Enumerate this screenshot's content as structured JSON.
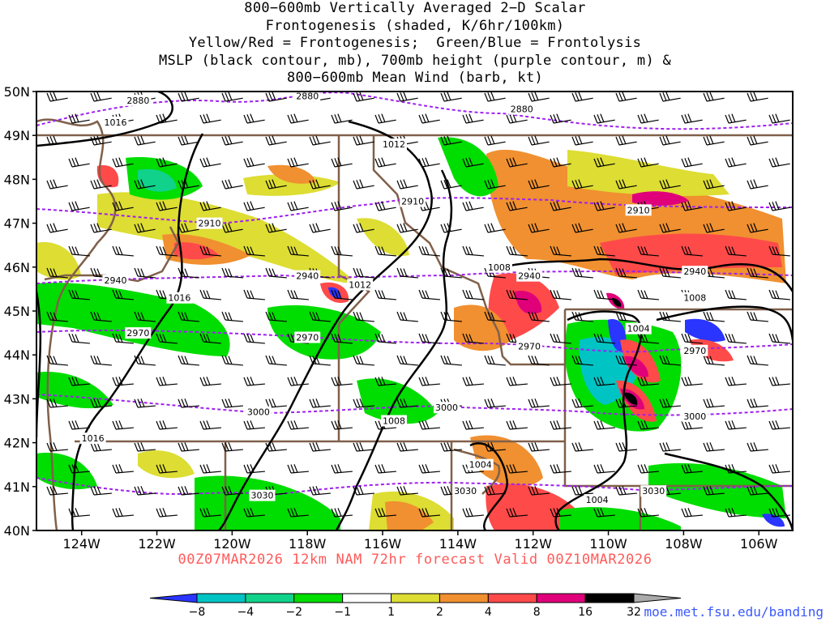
{
  "title": {
    "lines": [
      "800−600mb Vertically Averaged 2−D Scalar",
      "Frontogenesis (shaded, K/6hr/100km)",
      "Yellow/Red = Frontogenesis;  Green/Blue = Frontolysis",
      "MSLP (black contour, mb), 700mb height (purple contour, m) &",
      "800−600mb Mean Wind (barb, kt)"
    ]
  },
  "map": {
    "lon_range": [
      -125.2,
      -105.1
    ],
    "lat_range": [
      40,
      50
    ],
    "lat_ticks": [
      "50N",
      "49N",
      "48N",
      "47N",
      "46N",
      "45N",
      "44N",
      "43N",
      "42N",
      "41N",
      "40N"
    ],
    "lon_ticks": [
      "124W",
      "122W",
      "120W",
      "118W",
      "116W",
      "114W",
      "112W",
      "110W",
      "108W",
      "106W"
    ],
    "height_contours_m": [
      "2880",
      "2910",
      "2940",
      "2970",
      "3000",
      "3030"
    ],
    "height_labels": [
      {
        "text": "2880",
        "lon": -122.5,
        "lat": 49.8
      },
      {
        "text": "2880",
        "lon": -118.0,
        "lat": 49.9
      },
      {
        "text": "2880",
        "lon": -112.3,
        "lat": 49.6
      },
      {
        "text": "2910",
        "lon": -120.6,
        "lat": 47.0
      },
      {
        "text": "2910",
        "lon": -115.2,
        "lat": 47.5
      },
      {
        "text": "2910",
        "lon": -109.2,
        "lat": 47.3
      },
      {
        "text": "2940",
        "lon": -123.1,
        "lat": 45.7
      },
      {
        "text": "2940",
        "lon": -118.0,
        "lat": 45.8
      },
      {
        "text": "2940",
        "lon": -112.1,
        "lat": 45.8
      },
      {
        "text": "2940",
        "lon": -107.7,
        "lat": 45.9
      },
      {
        "text": "2970",
        "lon": -122.5,
        "lat": 44.5
      },
      {
        "text": "2970",
        "lon": -118.0,
        "lat": 44.4
      },
      {
        "text": "2970",
        "lon": -112.1,
        "lat": 44.2
      },
      {
        "text": "2970",
        "lon": -107.7,
        "lat": 44.1
      },
      {
        "text": "3000",
        "lon": -119.3,
        "lat": 42.7
      },
      {
        "text": "3000",
        "lon": -114.3,
        "lat": 42.8
      },
      {
        "text": "3000",
        "lon": -107.7,
        "lat": 42.6
      },
      {
        "text": "3030",
        "lon": -119.2,
        "lat": 40.8
      },
      {
        "text": "3030",
        "lon": -113.8,
        "lat": 40.9
      },
      {
        "text": "3030",
        "lon": -108.8,
        "lat": 40.9
      }
    ],
    "pressure_labels": [
      {
        "text": "1016",
        "lon": -123.1,
        "lat": 49.3
      },
      {
        "text": "1012",
        "lon": -115.7,
        "lat": 48.8
      },
      {
        "text": "1008",
        "lon": -112.9,
        "lat": 46.0
      },
      {
        "text": "1012",
        "lon": -116.6,
        "lat": 45.6
      },
      {
        "text": "1016",
        "lon": -121.4,
        "lat": 45.3
      },
      {
        "text": "1008",
        "lon": -107.7,
        "lat": 45.3
      },
      {
        "text": "1004",
        "lon": -109.2,
        "lat": 44.6
      },
      {
        "text": "1008",
        "lon": -115.7,
        "lat": 42.5
      },
      {
        "text": "1016",
        "lon": -123.7,
        "lat": 42.1
      },
      {
        "text": "1004",
        "lon": -113.4,
        "lat": 41.5
      },
      {
        "text": "1004",
        "lon": -110.3,
        "lat": 40.7
      }
    ]
  },
  "colorbar": {
    "labels": [
      "−8",
      "−4",
      "−2",
      "−1",
      "1",
      "2",
      "4",
      "8",
      "16",
      "32"
    ],
    "colors": [
      "#2a35ff",
      "#00c4c4",
      "#10d28a",
      "#00dd00",
      "#ffffff",
      "#dddd33",
      "#f09030",
      "#ff4a4a",
      "#e0007a",
      "#000000",
      "#aaaaaa"
    ]
  },
  "forecast_line": "00Z07MAR2026 12km NAM 72hr forecast Valid 00Z10MAR2026",
  "credit": "moe.met.fsu.edu/banding",
  "colors": {
    "height_contour": "#a020f0",
    "pressure_contour": "#000000",
    "borders": "#80604a",
    "forecast_text": "#ff5a5a",
    "credit_text": "#3a58ff"
  }
}
